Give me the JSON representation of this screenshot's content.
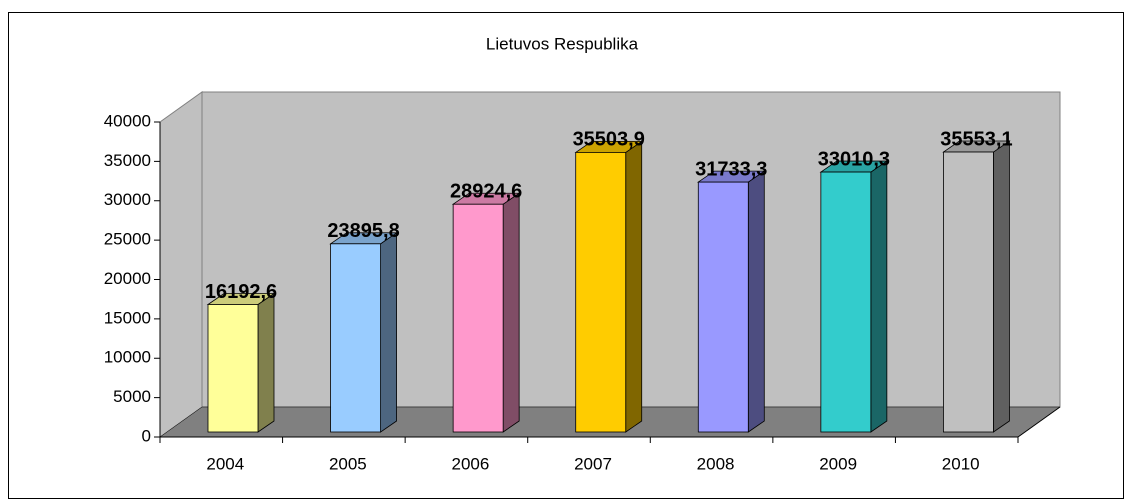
{
  "chart_data": {
    "type": "bar3d",
    "title": "Lietuvos Respublika",
    "categories": [
      "2004",
      "2005",
      "2006",
      "2007",
      "2008",
      "2009",
      "2010"
    ],
    "values": [
      16192.6,
      23895.8,
      28924.6,
      35503.9,
      31733.3,
      33010.3,
      35553.1
    ],
    "value_labels": [
      "16192,6",
      "23895,8",
      "28924,6",
      "35503,9",
      "31733,3",
      "33010,3",
      "35553,1"
    ],
    "colors": [
      "#ffff99",
      "#99ccff",
      "#ff99cc",
      "#ffcc00",
      "#9999ff",
      "#33cccc",
      "#c0c0c0"
    ],
    "ylim": [
      0,
      40000
    ],
    "yticks": [
      0,
      5000,
      10000,
      15000,
      20000,
      25000,
      30000,
      35000,
      40000
    ],
    "grid": false
  }
}
